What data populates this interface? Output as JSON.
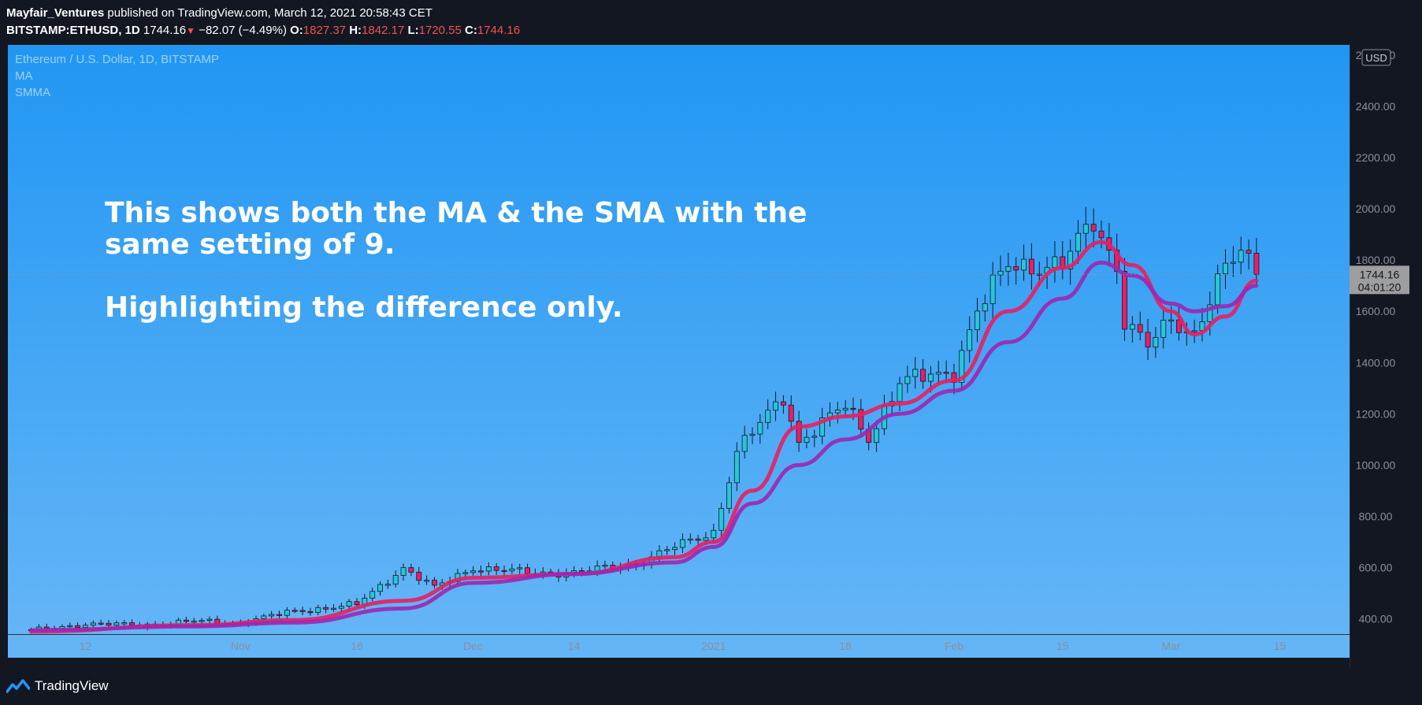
{
  "header": {
    "author": "Mayfair_Ventures",
    "published_text": "published on TradingView.com, March 12, 2021 20:58:43 CET",
    "symbol": "BITSTAMP:ETHUSD, 1D",
    "last": "1744.16",
    "change": "−82.07 (−4.49%)",
    "open_label": "O:",
    "open": "1827.37",
    "high_label": "H:",
    "high": "1842.17",
    "low_label": "L:",
    "low": "1720.55",
    "close_label": "C:",
    "close": "1744.16"
  },
  "legend": {
    "title": "Ethereum / U.S. Dollar, 1D, BITSTAMP",
    "items": [
      "MA",
      "SMMA"
    ]
  },
  "annotation": {
    "line1": "This shows both the MA & the SMA with the",
    "line2": "same setting of 9.",
    "line3": "Highlighting the difference only."
  },
  "footer": {
    "brand": "TradingView"
  },
  "colors": {
    "bg_top": "#2196f3",
    "bg_bottom": "#64b5f6",
    "up": "#26c6da",
    "down": "#e91e63",
    "ma": "#e91e63",
    "smma": "#9c27b0",
    "price_label_bg": "#9e9e9e"
  },
  "chart_data": {
    "type": "candlestick",
    "currency_label": "USD",
    "price_label": "1744.16",
    "countdown_label": "04:01:20",
    "y_ticks": [
      "400.00",
      "600.00",
      "800.00",
      "1000.00",
      "1200.00",
      "1400.00",
      "1600.00",
      "1800.00",
      "2000.00",
      "2200.00",
      "2400.00",
      "2600.00"
    ],
    "x_ticks": [
      {
        "label": "12",
        "date": "2020-10-12"
      },
      {
        "label": "Nov",
        "date": "2020-11-01"
      },
      {
        "label": "16",
        "date": "2020-11-16"
      },
      {
        "label": "Dec",
        "date": "2020-12-01"
      },
      {
        "label": "14",
        "date": "2020-12-14"
      },
      {
        "label": "2021",
        "date": "2021-01-01"
      },
      {
        "label": "18",
        "date": "2021-01-18"
      },
      {
        "label": "Feb",
        "date": "2021-02-01"
      },
      {
        "label": "15",
        "date": "2021-02-15"
      },
      {
        "label": "Mar",
        "date": "2021-03-01"
      },
      {
        "label": "15",
        "date": "2021-03-15"
      }
    ],
    "x_range": [
      "2020-10-02",
      "2021-03-24"
    ],
    "y_range": [
      340,
      2640
    ],
    "closes": [
      {
        "date": "2020-10-05",
        "close": 354
      },
      {
        "date": "2020-10-12",
        "close": 380
      },
      {
        "date": "2020-10-19",
        "close": 375
      },
      {
        "date": "2020-10-26",
        "close": 390
      },
      {
        "date": "2020-11-01",
        "close": 385
      },
      {
        "date": "2020-11-08",
        "close": 430
      },
      {
        "date": "2020-11-16",
        "close": 455
      },
      {
        "date": "2020-11-22",
        "close": 600
      },
      {
        "date": "2020-11-26",
        "close": 520
      },
      {
        "date": "2020-12-01",
        "close": 600
      },
      {
        "date": "2020-12-08",
        "close": 580
      },
      {
        "date": "2020-12-14",
        "close": 580
      },
      {
        "date": "2020-12-22",
        "close": 615
      },
      {
        "date": "2020-12-27",
        "close": 680
      },
      {
        "date": "2021-01-01",
        "close": 740
      },
      {
        "date": "2021-01-04",
        "close": 1050
      },
      {
        "date": "2021-01-10",
        "close": 1270
      },
      {
        "date": "2021-01-12",
        "close": 1090
      },
      {
        "date": "2021-01-18",
        "close": 1230
      },
      {
        "date": "2021-01-21",
        "close": 1110
      },
      {
        "date": "2021-01-25",
        "close": 1320
      },
      {
        "date": "2021-02-01",
        "close": 1370
      },
      {
        "date": "2021-02-04",
        "close": 1600
      },
      {
        "date": "2021-02-08",
        "close": 1780
      },
      {
        "date": "2021-02-15",
        "close": 1780
      },
      {
        "date": "2021-02-19",
        "close": 1950
      },
      {
        "date": "2021-02-22",
        "close": 1780
      },
      {
        "date": "2021-02-23",
        "close": 1570
      },
      {
        "date": "2021-02-26",
        "close": 1460
      },
      {
        "date": "2021-03-01",
        "close": 1560
      },
      {
        "date": "2021-03-04",
        "close": 1520
      },
      {
        "date": "2021-03-07",
        "close": 1720
      },
      {
        "date": "2021-03-10",
        "close": 1830
      },
      {
        "date": "2021-03-12",
        "close": 1744
      }
    ],
    "series": [
      {
        "name": "MA",
        "values": [
          {
            "date": "2020-10-05",
            "value": 350
          },
          {
            "date": "2020-10-26",
            "value": 375
          },
          {
            "date": "2020-11-08",
            "value": 395
          },
          {
            "date": "2020-11-22",
            "value": 470
          },
          {
            "date": "2020-12-01",
            "value": 560
          },
          {
            "date": "2020-12-14",
            "value": 575
          },
          {
            "date": "2020-12-27",
            "value": 640
          },
          {
            "date": "2021-01-01",
            "value": 700
          },
          {
            "date": "2021-01-06",
            "value": 900
          },
          {
            "date": "2021-01-12",
            "value": 1150
          },
          {
            "date": "2021-01-18",
            "value": 1190
          },
          {
            "date": "2021-01-25",
            "value": 1240
          },
          {
            "date": "2021-02-01",
            "value": 1330
          },
          {
            "date": "2021-02-08",
            "value": 1600
          },
          {
            "date": "2021-02-15",
            "value": 1770
          },
          {
            "date": "2021-02-20",
            "value": 1870
          },
          {
            "date": "2021-02-24",
            "value": 1780
          },
          {
            "date": "2021-03-01",
            "value": 1600
          },
          {
            "date": "2021-03-04",
            "value": 1510
          },
          {
            "date": "2021-03-08",
            "value": 1580
          },
          {
            "date": "2021-03-12",
            "value": 1720
          }
        ]
      },
      {
        "name": "SMMA",
        "values": [
          {
            "date": "2020-10-05",
            "value": 355
          },
          {
            "date": "2020-10-26",
            "value": 370
          },
          {
            "date": "2020-11-08",
            "value": 385
          },
          {
            "date": "2020-11-22",
            "value": 440
          },
          {
            "date": "2020-12-01",
            "value": 540
          },
          {
            "date": "2020-12-14",
            "value": 575
          },
          {
            "date": "2020-12-27",
            "value": 620
          },
          {
            "date": "2021-01-01",
            "value": 680
          },
          {
            "date": "2021-01-06",
            "value": 850
          },
          {
            "date": "2021-01-12",
            "value": 1000
          },
          {
            "date": "2021-01-18",
            "value": 1100
          },
          {
            "date": "2021-01-25",
            "value": 1200
          },
          {
            "date": "2021-02-01",
            "value": 1290
          },
          {
            "date": "2021-02-08",
            "value": 1480
          },
          {
            "date": "2021-02-15",
            "value": 1650
          },
          {
            "date": "2021-02-20",
            "value": 1790
          },
          {
            "date": "2021-02-24",
            "value": 1740
          },
          {
            "date": "2021-03-01",
            "value": 1630
          },
          {
            "date": "2021-03-04",
            "value": 1600
          },
          {
            "date": "2021-03-08",
            "value": 1620
          },
          {
            "date": "2021-03-12",
            "value": 1700
          }
        ]
      }
    ],
    "grid": false,
    "legend_position": "top-left"
  }
}
